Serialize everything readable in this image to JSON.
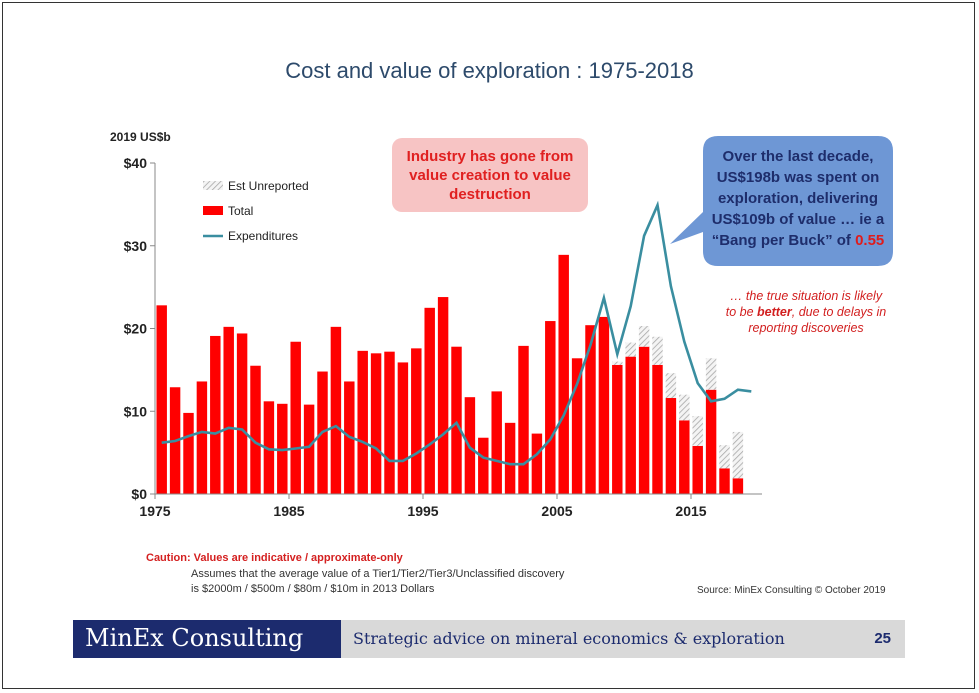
{
  "chart_data": {
    "type": "bar",
    "title": "Cost and value of exploration : 1975-2018",
    "ylabel": "2019 US$b",
    "ylim": [
      0,
      40
    ],
    "yticks": [
      "$0",
      "$10",
      "$20",
      "$30",
      "$40"
    ],
    "xticks": [
      "1975",
      "1985",
      "1995",
      "2005",
      "2015"
    ],
    "xtick_years": [
      1975,
      1985,
      1995,
      2005,
      2015
    ],
    "x": [
      1975,
      1976,
      1977,
      1978,
      1979,
      1980,
      1981,
      1982,
      1983,
      1984,
      1985,
      1986,
      1987,
      1988,
      1989,
      1990,
      1991,
      1992,
      1993,
      1994,
      1995,
      1996,
      1997,
      1998,
      1999,
      2000,
      2001,
      2002,
      2003,
      2004,
      2005,
      2006,
      2007,
      2008,
      2009,
      2010,
      2011,
      2012,
      2013,
      2014,
      2015,
      2016,
      2017,
      2018
    ],
    "series": [
      {
        "name": "Total",
        "color": "#ff0000",
        "values": [
          22.8,
          12.9,
          9.8,
          13.6,
          19.1,
          20.2,
          19.4,
          15.5,
          11.2,
          10.9,
          18.4,
          10.8,
          14.8,
          20.2,
          13.6,
          17.3,
          17.0,
          17.2,
          15.9,
          17.6,
          22.5,
          23.8,
          17.8,
          11.7,
          6.8,
          12.4,
          8.6,
          17.9,
          7.3,
          20.9,
          28.9,
          16.4,
          20.4,
          21.4,
          15.6,
          16.6,
          17.8,
          15.6,
          11.6,
          8.9,
          5.8,
          12.6,
          3.1,
          1.9
        ]
      },
      {
        "name": "Est Unreported",
        "color": "#bbbbbb",
        "stacked_on": "Total",
        "values": [
          0,
          0,
          0,
          0,
          0,
          0,
          0,
          0,
          0,
          0,
          0,
          0,
          0,
          0,
          0,
          0,
          0,
          0,
          0,
          0,
          0,
          0,
          0,
          0,
          0,
          0,
          0,
          0,
          0,
          0,
          0,
          0,
          0,
          0,
          0.4,
          1.7,
          2.5,
          3.4,
          3.0,
          3.1,
          3.6,
          3.8,
          2.8,
          5.6
        ]
      },
      {
        "name": "Expenditures",
        "color": "#3a8ea0",
        "type": "line",
        "x": [
          1975,
          1976,
          1977,
          1978,
          1979,
          1980,
          1981,
          1982,
          1983,
          1984,
          1985,
          1986,
          1987,
          1988,
          1989,
          1990,
          1991,
          1992,
          1993,
          1994,
          1995,
          1996,
          1997,
          1998,
          1999,
          2000,
          2001,
          2002,
          2003,
          2004,
          2005,
          2006,
          2007,
          2008,
          2009,
          2010,
          2011,
          2012,
          2013,
          2014,
          2015,
          2016,
          2017,
          2018,
          2019
        ],
        "values": [
          6.2,
          6.4,
          7.0,
          7.5,
          7.3,
          8.0,
          7.8,
          6.2,
          5.4,
          5.3,
          5.5,
          5.7,
          7.5,
          8.2,
          6.9,
          6.3,
          5.5,
          4.0,
          4.0,
          4.9,
          6.0,
          7.2,
          8.6,
          5.6,
          4.4,
          4.0,
          3.6,
          3.6,
          4.8,
          6.6,
          9.5,
          13.3,
          18.0,
          23.7,
          16.9,
          22.7,
          31.2,
          34.9,
          25.1,
          18.4,
          13.4,
          11.2,
          11.5,
          12.6,
          12.4
        ]
      }
    ],
    "legend": [
      "Est Unreported",
      "Total",
      "Expenditures"
    ],
    "legend_position": "top-left",
    "grid": false
  },
  "callouts": {
    "industry": "Industry has gone from value creation to value destruction",
    "decade_line1": "Over the  last decade, US$198b was spent on exploration, delivering US$109b of value … ie a “Bang per Buck” of ",
    "decade_value": "0.55",
    "note_pre": "… the true situation is likely to be ",
    "note_bold": "better",
    "note_post": ", due to delays in reporting discoveries"
  },
  "caution": "Caution:  Values are  indicative / approximate-only",
  "assume_line1": "Assumes that the average value of a Tier1/Tier2/Tier3/Unclassified discovery",
  "assume_line2": "is $2000m / $500m / $80m / $10m in 2013 Dollars",
  "source": "Source: MinEx Consulting © October 2019",
  "footer": {
    "brand": "MinEx Consulting",
    "tagline": "Strategic advice on mineral economics & exploration",
    "page": "25"
  },
  "colors": {
    "navy": "#1c2b6e",
    "callout_blue": "#6e97d5",
    "callout_red_bg": "#f7c4c4"
  }
}
